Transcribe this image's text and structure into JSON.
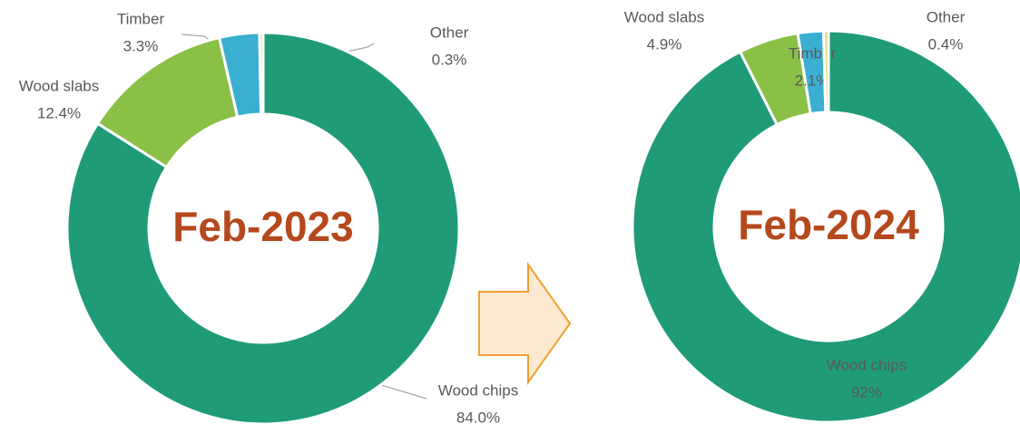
{
  "chart_data": [
    {
      "type": "pie",
      "donut": true,
      "title": "Feb-2023",
      "categories": [
        "Wood chips",
        "Wood slabs",
        "Timber",
        "Other"
      ],
      "values": [
        84.0,
        12.4,
        3.3,
        0.3
      ],
      "value_labels": [
        "84.0%",
        "12.4%",
        "3.3%",
        "0.3%"
      ],
      "colors": [
        "#1f9b78",
        "#8bc046",
        "#3aafd2",
        "#d9e27a"
      ]
    },
    {
      "type": "pie",
      "donut": true,
      "title": "Feb-2024",
      "categories": [
        "Wood chips",
        "Wood slabs",
        "Timber",
        "Other"
      ],
      "values": [
        92,
        4.9,
        2.1,
        0.4
      ],
      "value_labels": [
        "92%",
        "4.9%",
        "2.1%",
        "0.4%"
      ],
      "colors": [
        "#1f9b78",
        "#8bc046",
        "#3aafd2",
        "#d9e27a"
      ]
    }
  ]
}
